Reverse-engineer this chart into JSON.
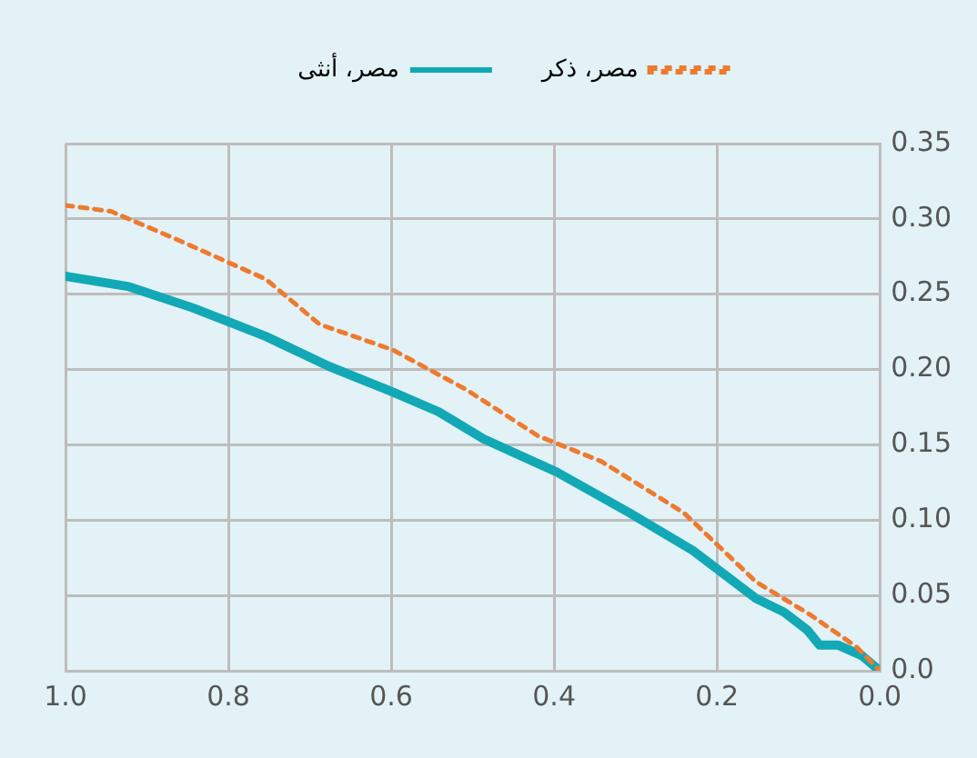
{
  "chart_data": {
    "type": "line",
    "series": [
      {
        "name": "مصر، ذكر",
        "color": "#ee7a2e",
        "line_style": "dashed",
        "x": [
          1.0,
          0.944,
          0.866,
          0.754,
          0.688,
          0.598,
          0.509,
          0.42,
          0.342,
          0.241,
          0.152,
          0.085,
          0.029,
          0.0
        ],
        "values": [
          0.309,
          0.305,
          0.287,
          0.26,
          0.23,
          0.213,
          0.187,
          0.156,
          0.139,
          0.105,
          0.059,
          0.037,
          0.016,
          0.0
        ]
      },
      {
        "name": "مصر، أنثى",
        "color": "#12a8b5",
        "line_style": "solid",
        "x": [
          1.0,
          0.922,
          0.844,
          0.754,
          0.676,
          0.598,
          0.542,
          0.487,
          0.397,
          0.308,
          0.23,
          0.152,
          0.118,
          0.089,
          0.074,
          0.051,
          0.022,
          0.0
        ],
        "values": [
          0.262,
          0.255,
          0.241,
          0.222,
          0.202,
          0.185,
          0.172,
          0.154,
          0.132,
          0.105,
          0.08,
          0.048,
          0.039,
          0.027,
          0.017,
          0.017,
          0.01,
          0.0
        ]
      }
    ],
    "xlim": [
      1.0,
      0.0
    ],
    "xticks": [
      {
        "value": 1.0,
        "label": "1.0"
      },
      0.8,
      0.6,
      0.4,
      0.2,
      {
        "value": 0,
        "label": "0.0"
      }
    ],
    "ylim": [
      0,
      0.35
    ],
    "yticks": [
      {
        "value": 0,
        "label": "0.0"
      },
      0.05,
      {
        "value": 0.1,
        "label": "0.10"
      },
      0.15,
      {
        "value": 0.2,
        "label": "0.20"
      },
      0.25,
      {
        "value": 0.3,
        "label": "0.30"
      },
      0.35
    ],
    "grid": true,
    "legend": "top",
    "marker": "none"
  }
}
